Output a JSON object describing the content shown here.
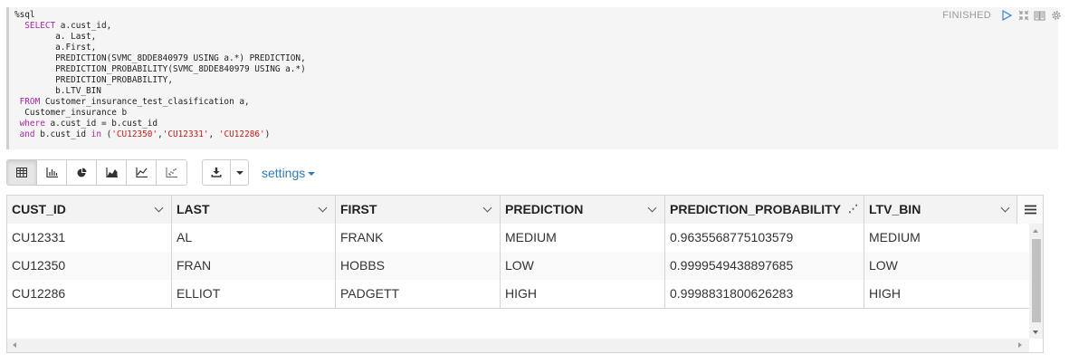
{
  "editor": {
    "lines": [
      "%sql",
      "  SELECT a.cust_id,",
      "        a. Last,",
      "        a.First,",
      "        PREDICTION(SVMC_8DDE840979 USING a.*) PREDICTION,",
      "        PREDICTION_PROBABILITY(SVMC_8DDE840979 USING a.*)",
      "        PREDICTION_PROBABILITY,",
      "        b.LTV_BIN",
      " FROM Customer_insurance_test_clasification a,",
      "  Customer_insurance b",
      " where a.cust_id = b.cust_id",
      " and b.cust_id in ('CU12350','CU12331', 'CU12286')"
    ],
    "status": "FINISHED",
    "icons": [
      "run-icon",
      "expand-icon",
      "book-icon",
      "gear-icon"
    ]
  },
  "toolbar": {
    "view_buttons": [
      "table-icon",
      "bar-chart-icon",
      "pie-chart-icon",
      "area-chart-icon",
      "line-chart-icon",
      "scatter-chart-icon"
    ],
    "settings_label": "settings"
  },
  "grid": {
    "columns": [
      "CUST_ID",
      "LAST",
      "FIRST",
      "PREDICTION",
      "PREDICTION_PROBABILITY",
      "LTV_BIN"
    ],
    "rows": [
      [
        "CU12331",
        "AL",
        "FRANK",
        "MEDIUM",
        "0.9635568775103579",
        "MEDIUM"
      ],
      [
        "CU12350",
        "FRAN",
        "HOBBS",
        "LOW",
        "0.9999549438897685",
        "LOW"
      ],
      [
        "CU12286",
        "ELLIOT",
        "PADGETT",
        "HIGH",
        "0.9998831800626283",
        "HIGH"
      ]
    ]
  },
  "colors": {
    "accent": "#337ab7",
    "editor_bg": "#f5f5f5",
    "keyword": "#a626a4",
    "string": "#c41a16"
  }
}
